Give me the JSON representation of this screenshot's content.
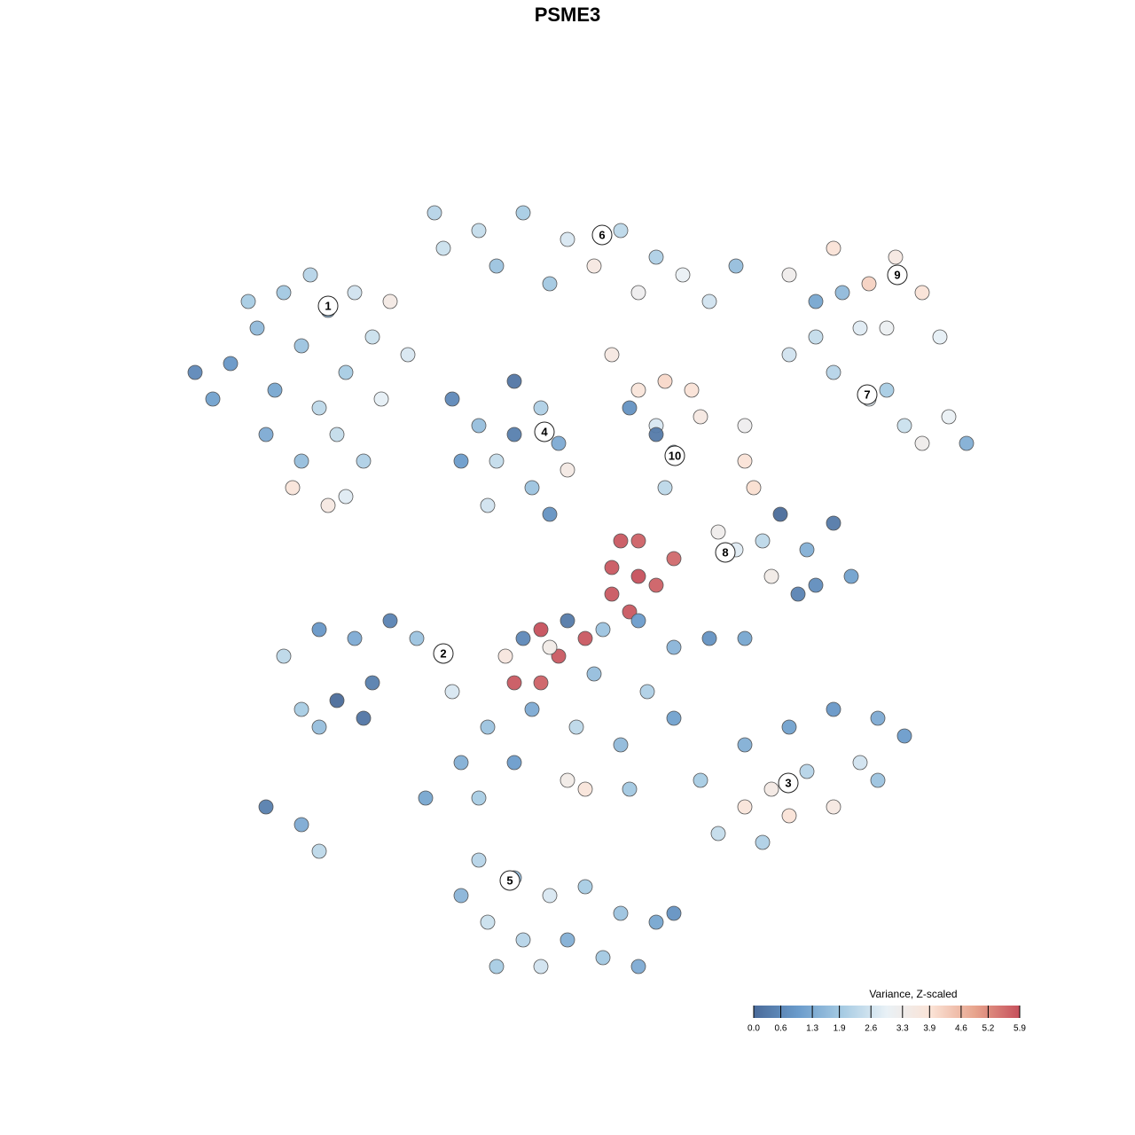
{
  "chart_data": {
    "type": "scatter",
    "title": "PSME3",
    "xlim": [
      -64,
      64
    ],
    "ylim": [
      -64,
      64
    ],
    "x": [
      -27,
      -30,
      -25,
      -33,
      -28,
      -22,
      -35,
      -38,
      -40,
      -24,
      -20,
      -29,
      -32,
      -26,
      -30,
      -34,
      -23,
      -31,
      -27,
      -25,
      -36,
      -18,
      -21,
      -42,
      -10,
      -5,
      0,
      3,
      6,
      10,
      -8,
      -14,
      13,
      8,
      -2,
      16,
      19,
      -15,
      25,
      30,
      34,
      37,
      40,
      28,
      33,
      36,
      42,
      31,
      25,
      30,
      34,
      38,
      43,
      45,
      40,
      28,
      36,
      20,
      -13,
      -10,
      -6,
      -3,
      -1,
      -8,
      -12,
      -4,
      -2,
      -9,
      0,
      -6,
      8,
      11,
      14,
      10,
      12,
      11,
      7,
      10,
      15,
      5,
      24,
      30,
      27,
      28,
      32,
      26,
      22,
      19,
      23,
      21,
      20,
      17,
      6,
      8,
      5,
      8,
      10,
      5,
      7,
      12,
      2,
      -3,
      -1,
      -3,
      -6,
      -7,
      -2,
      -28,
      -24,
      -20,
      -17,
      -14,
      -26,
      -23,
      -28,
      -30,
      -22,
      -13,
      -32,
      -5,
      0,
      4,
      8,
      12,
      16,
      20,
      3,
      9,
      -4,
      1,
      6,
      12,
      -9,
      -6,
      0,
      2,
      -12,
      -16,
      -10,
      7,
      15,
      20,
      25,
      30,
      35,
      38,
      27,
      23,
      20,
      25,
      30,
      33,
      17,
      22,
      35,
      -34,
      -30,
      -28,
      -10,
      -6,
      -2,
      2,
      6,
      10,
      -9,
      -5,
      0,
      4,
      -3,
      -12,
      -8,
      8,
      12
    ],
    "y": [
      29,
      25,
      22,
      20,
      18,
      26,
      27,
      23,
      19,
      31,
      30,
      33,
      31,
      15,
      12,
      15,
      12,
      9,
      7,
      8,
      30,
      24,
      19,
      22,
      38,
      40,
      37,
      34,
      38,
      35,
      34,
      36,
      33,
      31,
      32,
      30,
      34,
      40,
      33,
      36,
      32,
      35,
      31,
      30,
      27,
      27,
      26,
      31,
      24,
      22,
      19,
      16,
      17,
      14,
      14,
      26,
      20,
      16,
      19,
      16,
      15,
      18,
      14,
      12,
      12,
      9,
      6,
      7,
      11,
      21,
      20,
      21,
      20,
      16,
      13,
      9,
      18,
      15,
      17,
      24,
      6,
      5,
      2,
      -2,
      -1,
      -3,
      3,
      2,
      -1,
      9,
      12,
      4,
      3,
      3,
      0,
      -1,
      -2,
      -3,
      -5,
      1,
      -8,
      -7,
      -10,
      -13,
      -13,
      -10,
      -9,
      -7,
      -8,
      -6,
      -8,
      -10,
      -15,
      -17,
      -18,
      -16,
      -13,
      -14,
      -10,
      -8,
      -6,
      -7,
      -6,
      -9,
      -8,
      -8,
      -12,
      -14,
      -16,
      -18,
      -20,
      -17,
      -18,
      -22,
      -24,
      -25,
      -22,
      -26,
      -26,
      -25,
      -24,
      -20,
      -18,
      -16,
      -17,
      -19,
      -23,
      -25,
      -27,
      -28,
      -27,
      -22,
      -30,
      -31,
      -24,
      -27,
      -29,
      -32,
      -33,
      -35,
      -37,
      -36,
      -39,
      -40,
      -40,
      -42,
      -42,
      -44,
      -45,
      -37,
      -45,
      -45,
      -39
    ],
    "values": [
      1.5,
      1.8,
      2.0,
      1.2,
      2.3,
      2.5,
      1.6,
      0.9,
      1.1,
      2.6,
      3.5,
      2.2,
      1.9,
      2.4,
      1.7,
      1.3,
      2.1,
      3.8,
      3.6,
      2.8,
      2.0,
      2.7,
      2.9,
      0.6,
      2.4,
      2.0,
      2.7,
      3.6,
      2.3,
      2.1,
      1.8,
      2.5,
      3.0,
      3.2,
      1.9,
      2.6,
      1.7,
      2.2,
      3.3,
      3.9,
      4.2,
      3.6,
      3.9,
      1.2,
      2.8,
      3.1,
      2.9,
      1.6,
      2.6,
      2.2,
      2.8,
      2.5,
      3.0,
      1.4,
      3.3,
      2.4,
      2.0,
      3.2,
      0.6,
      1.7,
      0.4,
      2.1,
      1.3,
      2.4,
      1.0,
      1.8,
      0.8,
      2.6,
      3.5,
      0.2,
      3.8,
      4.1,
      3.9,
      2.7,
      1.9,
      2.3,
      0.8,
      0.3,
      3.6,
      3.6,
      0.0,
      0.3,
      1.4,
      0.7,
      1.1,
      0.5,
      2.3,
      2.8,
      3.4,
      4.0,
      3.9,
      3.3,
      5.8,
      5.7,
      5.8,
      5.9,
      5.7,
      5.8,
      5.8,
      5.6,
      5.8,
      5.9,
      5.8,
      5.7,
      5.8,
      3.7,
      3.4,
      0.9,
      1.3,
      0.5,
      1.8,
      2.4,
      0.0,
      0.2,
      1.7,
      2.0,
      0.4,
      2.7,
      2.3,
      0.6,
      0.3,
      1.8,
      1.0,
      1.5,
      0.8,
      1.2,
      1.7,
      2.1,
      1.3,
      2.3,
      1.6,
      1.1,
      1.8,
      1.0,
      3.4,
      3.8,
      1.4,
      1.2,
      2.0,
      1.9,
      2.0,
      1.4,
      1.1,
      0.9,
      1.3,
      1.0,
      2.2,
      3.5,
      3.8,
      3.9,
      3.6,
      2.6,
      2.4,
      2.1,
      1.8,
      0.4,
      1.3,
      2.3,
      2.2,
      1.6,
      2.7,
      2.0,
      1.8,
      1.2,
      2.5,
      2.2,
      1.4,
      1.9,
      2.6,
      1.5,
      2.0,
      1.3,
      0.8
    ],
    "annotations": [
      {
        "text": "1",
        "x": -27,
        "y": 29.5
      },
      {
        "text": "2",
        "x": -14,
        "y": -9.7
      },
      {
        "text": "3",
        "x": 24.9,
        "y": -24.3
      },
      {
        "text": "4",
        "x": -2.6,
        "y": 15.3
      },
      {
        "text": "5",
        "x": -6.5,
        "y": -35.3
      },
      {
        "text": "6",
        "x": 3.9,
        "y": 37.5
      },
      {
        "text": "7",
        "x": 33.8,
        "y": 19.5
      },
      {
        "text": "8",
        "x": 17.8,
        "y": 1.7
      },
      {
        "text": "9",
        "x": 37.2,
        "y": 33
      },
      {
        "text": "10",
        "x": 12.1,
        "y": 12.6
      }
    ],
    "colorbar": {
      "title": "Variance, Z-scaled",
      "clim": [
        0,
        5.9
      ],
      "colors": [
        "#4a6b9a",
        "#6a9bcb",
        "#a6cbe3",
        "#e9f1f6",
        "#fbe3d6",
        "#e7a38c",
        "#c6505c"
      ],
      "ticks": [
        {
          "value": 0,
          "label": "0.0"
        },
        0.6,
        1.3,
        1.9,
        2.6,
        3.3,
        3.9,
        4.6,
        5.2,
        5.9
      ]
    }
  }
}
